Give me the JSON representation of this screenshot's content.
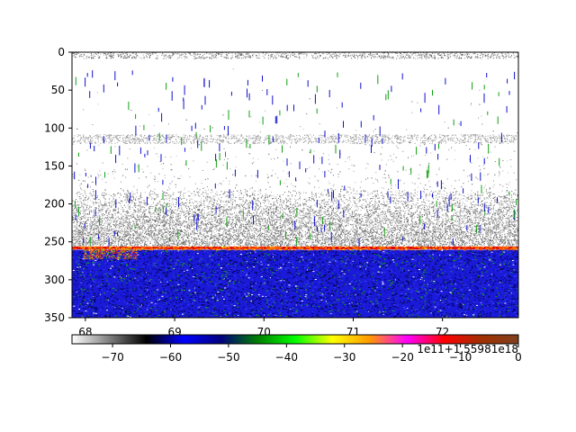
{
  "chart_data": [
    {
      "type": "heatmap",
      "title": "",
      "xlabel": "",
      "ylabel": "",
      "xlim": [
        67.85,
        72.85
      ],
      "ylim": [
        350,
        0
      ],
      "x_ticks": [
        68,
        69,
        70,
        71,
        72
      ],
      "x_tick_labels": [
        "68",
        "69",
        "70",
        "71",
        "72"
      ],
      "y_ticks": [
        0,
        50,
        100,
        150,
        200,
        250,
        300,
        350
      ],
      "y_tick_labels": [
        "0",
        "50",
        "100",
        "150",
        "200",
        "250",
        "300",
        "350"
      ],
      "features": [
        {
          "kind": "surface-noise",
          "range": [
            0,
            8
          ]
        },
        {
          "kind": "scattering-layer",
          "range": [
            108,
            120
          ]
        },
        {
          "kind": "noise-band",
          "range": [
            180,
            255
          ]
        },
        {
          "kind": "seabed-echo",
          "depth": 258
        }
      ],
      "grid": false
    },
    {
      "type": "colorbar",
      "orientation": "horizontal",
      "range": [
        -77,
        0
      ],
      "ticks": [
        -70,
        -60,
        -50,
        -40,
        -30,
        -20,
        -10,
        0
      ],
      "tick_labels": [
        "−70",
        "−60",
        "−50",
        "−40",
        "−30",
        "−20",
        "−10",
        "0"
      ],
      "offset_text": "1e11+1.55981e18",
      "colors": [
        "#ffffff",
        "#7f7f7f",
        "#000000",
        "#0000ff",
        "#00007f",
        "#008000",
        "#00ff00",
        "#ffff00",
        "#ff9900",
        "#ff00ff",
        "#ff0000",
        "#a03000",
        "#7f4020"
      ]
    }
  ]
}
